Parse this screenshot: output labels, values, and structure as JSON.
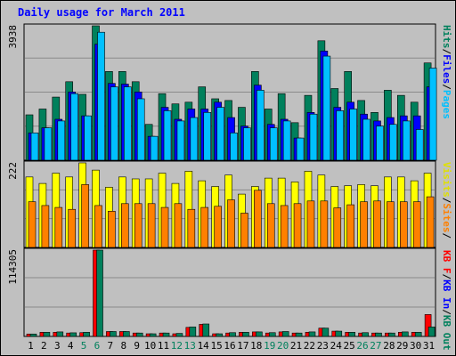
{
  "chart_data": {
    "type": "bar",
    "title": "Daily usage for March 2011",
    "categories": [
      "1",
      "2",
      "3",
      "4",
      "5",
      "6",
      "7",
      "8",
      "9",
      "10",
      "11",
      "12",
      "13",
      "14",
      "15",
      "16",
      "17",
      "18",
      "19",
      "20",
      "21",
      "22",
      "23",
      "24",
      "25",
      "26",
      "27",
      "28",
      "29",
      "30",
      "31"
    ],
    "weekend_days": [
      "5",
      "6",
      "12",
      "13",
      "19",
      "20",
      "26",
      "27"
    ],
    "panels": {
      "top": {
        "max_label": "3938",
        "ymax": 3938,
        "legend": [
          {
            "text": "Hits",
            "color": "#00805c"
          },
          {
            "text": "/",
            "color": "#000000"
          },
          {
            "text": "Files",
            "color": "#0000ff"
          },
          {
            "text": "/",
            "color": "#000000"
          },
          {
            "text": "Pages",
            "color": "#00c0ff"
          }
        ],
        "series": [
          {
            "name": "Hits",
            "color": "#00805c",
            "values": [
              1330,
              1500,
              1850,
              2300,
              1930,
              3938,
              2600,
              2600,
              2300,
              1050,
              1950,
              1650,
              1700,
              2150,
              1800,
              1750,
              1550,
              2600,
              1500,
              1950,
              1100,
              1900,
              3500,
              2100,
              2600,
              1750,
              1400,
              2050,
              1900,
              1700,
              2850
            ]
          },
          {
            "name": "Files",
            "color": "#0000ff",
            "values": [
              800,
              950,
              1200,
              2000,
              1300,
              3400,
              2250,
              2230,
              2000,
              700,
              1550,
              1200,
              1500,
              1500,
              1700,
              1250,
              1000,
              2200,
              1050,
              1200,
              650,
              1400,
              3200,
              1550,
              1700,
              1350,
              1150,
              1250,
              1300,
              1300,
              2150
            ]
          },
          {
            "name": "Pages",
            "color": "#00c0ff",
            "values": [
              800,
              950,
              1150,
              1950,
              1300,
              3750,
              2150,
              2150,
              1800,
              700,
              1450,
              1150,
              1250,
              1400,
              1550,
              800,
              950,
              2050,
              950,
              1150,
              650,
              1350,
              3050,
              1450,
              1500,
              1200,
              1000,
              1050,
              1150,
              900,
              2700
            ]
          }
        ]
      },
      "middle": {
        "max_label": "222",
        "ymax": 222,
        "legend": [
          {
            "text": "Visits",
            "color": "#e0e000"
          },
          {
            "text": "/",
            "color": "#000000"
          },
          {
            "text": "Sites",
            "color": "#ff8000"
          },
          {
            "text": "/",
            "color": "#000000"
          }
        ],
        "series": [
          {
            "name": "Visits",
            "color": "#ffff00",
            "values": [
              185,
              168,
              195,
              185,
              222,
              203,
              158,
              185,
              180,
              180,
              195,
              168,
              200,
              175,
              160,
              190,
              140,
              160,
              182,
              182,
              172,
              200,
              190,
              160,
              162,
              165,
              162,
              185,
              185,
              175,
              195
            ]
          },
          {
            "name": "Sites",
            "color": "#ff8000",
            "values": [
              120,
              110,
              105,
              100,
              165,
              110,
              95,
              115,
              115,
              115,
              105,
              115,
              100,
              105,
              108,
              125,
              90,
              150,
              115,
              110,
              115,
              122,
              122,
              104,
              112,
              120,
              122,
              120,
              120,
              120,
              133
            ]
          }
        ]
      },
      "bottom": {
        "max_label": "114305",
        "ymax": 114305,
        "legend": [
          {
            "text": "KB F",
            "color": "#ff0000"
          },
          {
            "text": "/",
            "color": "#000000"
          },
          {
            "text": "KB In",
            "color": "#0000ff"
          },
          {
            "text": "/",
            "color": "#000000"
          },
          {
            "text": "KB Out",
            "color": "#00805c"
          }
        ],
        "series": [
          {
            "name": "KB F",
            "color": "#ff0000",
            "values": [
              3200,
              5500,
              5500,
              4500,
              5000,
              114305,
              6500,
              6500,
              4500,
              3500,
              4500,
              3500,
              12000,
              16000,
              3500,
              4500,
              5500,
              6000,
              4500,
              6000,
              4500,
              5500,
              11000,
              7000,
              5500,
              4500,
              4500,
              4500,
              5500,
              5500,
              29000
            ]
          },
          {
            "name": "KB Out",
            "color": "#00805c",
            "values": [
              3200,
              5500,
              6000,
              4800,
              5500,
              114305,
              6500,
              6500,
              4500,
              3500,
              4500,
              4000,
              12500,
              16500,
              3500,
              5000,
              5500,
              6000,
              5000,
              6500,
              4500,
              6000,
              11000,
              7000,
              5500,
              5000,
              4500,
              4500,
              6000,
              5500,
              12500
            ]
          }
        ]
      }
    },
    "colors": {
      "background": "#c0c0c0",
      "panel": "#c0c0c0",
      "title": "#0000ff",
      "label": "#000000",
      "weekday_label": "#000000",
      "weekend_label": "#00805c"
    }
  }
}
